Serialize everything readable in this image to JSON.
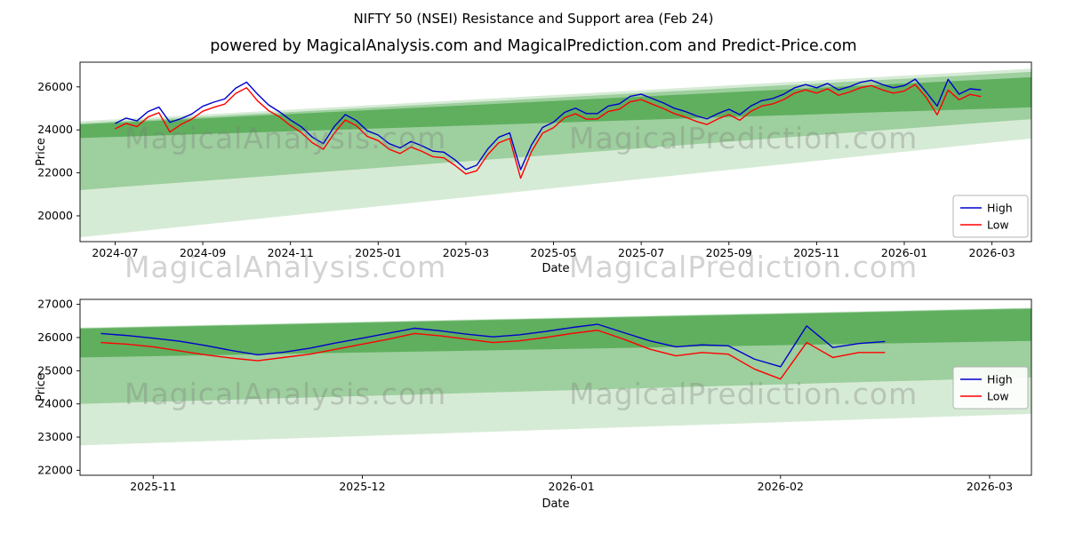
{
  "title": "NIFTY 50 (NSEI) Resistance and Support area (Feb 24)",
  "subtitle": "powered by MagicalAnalysis.com and MagicalPrediction.com and Predict-Price.com",
  "watermarks": [
    "MagicalAnalysis.com",
    "MagicalPrediction.com"
  ],
  "colors": {
    "high_line": "#0000cd",
    "low_line": "#ff0000",
    "band_green": "#008000",
    "watermark_gray": "#9a9a9a",
    "legend_border": "#b5b5b5"
  },
  "chart_data": [
    {
      "type": "line",
      "title": "",
      "xlabel": "Date",
      "ylabel": "Price",
      "x_unit": "months since 2024-07-01",
      "xlim": [
        -0.8,
        20.9
      ],
      "ylim": [
        18800,
        27150
      ],
      "grid": false,
      "legend_loc": "right",
      "x_ticks": [
        {
          "v": 0,
          "label": "2024-07"
        },
        {
          "v": 2,
          "label": "2024-09"
        },
        {
          "v": 4,
          "label": "2024-11"
        },
        {
          "v": 6,
          "label": "2025-01"
        },
        {
          "v": 8,
          "label": "2025-03"
        },
        {
          "v": 10,
          "label": "2025-05"
        },
        {
          "v": 12,
          "label": "2025-07"
        },
        {
          "v": 14,
          "label": "2025-09"
        },
        {
          "v": 16,
          "label": "2025-11"
        },
        {
          "v": 18,
          "label": "2026-01"
        },
        {
          "v": 20,
          "label": "2026-03"
        }
      ],
      "y_ticks": [
        {
          "v": 20000,
          "label": "20000"
        },
        {
          "v": 22000,
          "label": "22000"
        },
        {
          "v": 24000,
          "label": "24000"
        },
        {
          "v": 26000,
          "label": "26000"
        }
      ],
      "bands": [
        {
          "name": "support-outer",
          "color": "rgba(0,128,0,0.16)",
          "points": [
            [
              -0.8,
              24400
            ],
            [
              20.9,
              26850
            ],
            [
              20.9,
              23600
            ],
            [
              -0.8,
              19000
            ]
          ]
        },
        {
          "name": "support-middle",
          "color": "rgba(0,128,0,0.26)",
          "points": [
            [
              -0.8,
              24300
            ],
            [
              20.9,
              26700
            ],
            [
              20.9,
              24500
            ],
            [
              -0.8,
              21200
            ]
          ]
        },
        {
          "name": "resistance-inner",
          "color": "rgba(0,128,0,0.40)",
          "points": [
            [
              -0.8,
              24250
            ],
            [
              20.9,
              26450
            ],
            [
              20.9,
              25050
            ],
            [
              -0.8,
              23620
            ]
          ]
        }
      ],
      "series": [
        {
          "name": "High",
          "color": "#0000cd",
          "x": [
            0,
            0.25,
            0.5,
            0.75,
            1,
            1.25,
            1.5,
            1.75,
            2,
            2.25,
            2.5,
            2.75,
            3,
            3.25,
            3.5,
            3.75,
            4,
            4.25,
            4.5,
            4.75,
            5,
            5.25,
            5.5,
            5.75,
            6,
            6.25,
            6.5,
            6.75,
            7,
            7.25,
            7.5,
            7.75,
            8,
            8.25,
            8.5,
            8.75,
            9,
            9.25,
            9.5,
            9.75,
            10,
            10.25,
            10.5,
            10.75,
            11,
            11.25,
            11.5,
            11.75,
            12,
            12.25,
            12.5,
            12.75,
            13,
            13.25,
            13.5,
            13.75,
            14,
            14.25,
            14.5,
            14.75,
            15,
            15.25,
            15.5,
            15.75,
            16,
            16.25,
            16.5,
            16.75,
            17,
            17.25,
            17.5,
            17.75,
            18,
            18.25,
            18.5,
            18.75,
            19,
            19.25,
            19.5,
            19.75
          ],
          "y": [
            24300,
            24550,
            24420,
            24850,
            25060,
            24350,
            24520,
            24740,
            25100,
            25290,
            25440,
            25940,
            26220,
            25660,
            25160,
            24840,
            24460,
            24140,
            23660,
            23360,
            24160,
            24710,
            24440,
            23960,
            23760,
            23360,
            23160,
            23460,
            23260,
            23010,
            22960,
            22610,
            22160,
            22360,
            23110,
            23660,
            23860,
            22150,
            23310,
            24110,
            24360,
            24810,
            25010,
            24760,
            24760,
            25110,
            25210,
            25560,
            25660,
            25460,
            25260,
            25010,
            24860,
            24660,
            24510,
            24760,
            24960,
            24710,
            25110,
            25360,
            25460,
            25660,
            25960,
            26110,
            25960,
            26160,
            25860,
            26010,
            26210,
            26310,
            26110,
            25960,
            26060,
            26360,
            25760,
            25110,
            26350,
            25660,
            25910,
            25860
          ]
        },
        {
          "name": "Low",
          "color": "#ff0000",
          "x": [
            0,
            0.25,
            0.5,
            0.75,
            1,
            1.25,
            1.5,
            1.75,
            2,
            2.25,
            2.5,
            2.75,
            3,
            3.25,
            3.5,
            3.75,
            4,
            4.25,
            4.5,
            4.75,
            5,
            5.25,
            5.5,
            5.75,
            6,
            6.25,
            6.5,
            6.75,
            7,
            7.25,
            7.5,
            7.75,
            8,
            8.25,
            8.5,
            8.75,
            9,
            9.25,
            9.5,
            9.75,
            10,
            10.25,
            10.5,
            10.75,
            11,
            11.25,
            11.5,
            11.75,
            12,
            12.25,
            12.5,
            12.75,
            13,
            13.25,
            13.5,
            13.75,
            14,
            14.25,
            14.5,
            14.75,
            15,
            15.25,
            15.5,
            15.75,
            16,
            16.25,
            16.5,
            16.75,
            17,
            17.25,
            17.5,
            17.75,
            18,
            18.25,
            18.5,
            18.75,
            19,
            19.25,
            19.5,
            19.75
          ],
          "y": [
            24050,
            24300,
            24150,
            24600,
            24800,
            23900,
            24250,
            24500,
            24870,
            25050,
            25200,
            25700,
            25960,
            25350,
            24900,
            24600,
            24200,
            23870,
            23400,
            23100,
            23850,
            24460,
            24200,
            23700,
            23500,
            23100,
            22900,
            23200,
            23000,
            22750,
            22700,
            22350,
            21950,
            22100,
            22850,
            23400,
            23600,
            21750,
            23000,
            23850,
            24100,
            24560,
            24750,
            24500,
            24510,
            24860,
            24960,
            25310,
            25410,
            25200,
            25000,
            24760,
            24600,
            24400,
            24250,
            24510,
            24710,
            24450,
            24860,
            25110,
            25210,
            25410,
            25710,
            25860,
            25710,
            25910,
            25610,
            25760,
            25960,
            26060,
            25860,
            25710,
            25810,
            26110,
            25510,
            24700,
            25850,
            25400,
            25650,
            25550
          ]
        }
      ],
      "legend": [
        "High",
        "Low"
      ]
    },
    {
      "type": "line",
      "title": "",
      "xlabel": "Date",
      "ylabel": "Price",
      "x_unit": "months since 2025-11-01",
      "xlim": [
        -0.35,
        4.2
      ],
      "ylim": [
        21850,
        27150
      ],
      "grid": false,
      "legend_loc": "right",
      "x_ticks": [
        {
          "v": 0,
          "label": "2025-11"
        },
        {
          "v": 1,
          "label": "2025-12"
        },
        {
          "v": 2,
          "label": "2026-01"
        },
        {
          "v": 3,
          "label": "2026-02"
        },
        {
          "v": 4,
          "label": "2026-03"
        }
      ],
      "y_ticks": [
        {
          "v": 22000,
          "label": "22000"
        },
        {
          "v": 23000,
          "label": "23000"
        },
        {
          "v": 24000,
          "label": "24000"
        },
        {
          "v": 25000,
          "label": "25000"
        },
        {
          "v": 26000,
          "label": "26000"
        },
        {
          "v": 27000,
          "label": "27000"
        }
      ],
      "bands": [
        {
          "name": "support-outer",
          "color": "rgba(0,128,0,0.16)",
          "points": [
            [
              -0.35,
              26300
            ],
            [
              4.2,
              26900
            ],
            [
              4.2,
              23700
            ],
            [
              -0.35,
              22750
            ]
          ]
        },
        {
          "name": "support-middle",
          "color": "rgba(0,128,0,0.26)",
          "points": [
            [
              -0.35,
              26260
            ],
            [
              4.2,
              26860
            ],
            [
              4.2,
              24800
            ],
            [
              -0.35,
              24000
            ]
          ]
        },
        {
          "name": "resistance-inner",
          "color": "rgba(0,128,0,0.40)",
          "points": [
            [
              -0.35,
              26280
            ],
            [
              4.2,
              26880
            ],
            [
              4.2,
              25900
            ],
            [
              -0.35,
              25400
            ]
          ]
        }
      ],
      "series": [
        {
          "name": "High",
          "color": "#0000cd",
          "x": [
            -0.25,
            -0.125,
            0,
            0.125,
            0.25,
            0.375,
            0.5,
            0.625,
            0.75,
            0.875,
            1,
            1.125,
            1.25,
            1.375,
            1.5,
            1.625,
            1.75,
            1.875,
            2,
            2.125,
            2.25,
            2.375,
            2.5,
            2.625,
            2.75,
            2.875,
            3,
            3.125,
            3.25,
            3.375,
            3.5
          ],
          "y": [
            26120,
            26060,
            25980,
            25890,
            25760,
            25610,
            25480,
            25560,
            25680,
            25840,
            25980,
            26130,
            26280,
            26200,
            26100,
            26020,
            26080,
            26180,
            26300,
            26400,
            26150,
            25900,
            25720,
            25780,
            25750,
            25350,
            25120,
            26350,
            25700,
            25820,
            25880
          ]
        },
        {
          "name": "Low",
          "color": "#ff0000",
          "x": [
            -0.25,
            -0.125,
            0,
            0.125,
            0.25,
            0.375,
            0.5,
            0.625,
            0.75,
            0.875,
            1,
            1.125,
            1.25,
            1.375,
            1.5,
            1.625,
            1.75,
            1.875,
            2,
            2.125,
            2.25,
            2.375,
            2.5,
            2.625,
            2.75,
            2.875,
            3,
            3.125,
            3.25,
            3.375,
            3.5
          ],
          "y": [
            25850,
            25800,
            25720,
            25600,
            25480,
            25380,
            25300,
            25400,
            25500,
            25650,
            25800,
            25950,
            26120,
            26050,
            25950,
            25850,
            25900,
            26000,
            26120,
            26220,
            25950,
            25650,
            25450,
            25550,
            25500,
            25050,
            24750,
            25850,
            25400,
            25550,
            25550
          ]
        }
      ],
      "legend": [
        "High",
        "Low"
      ]
    }
  ]
}
